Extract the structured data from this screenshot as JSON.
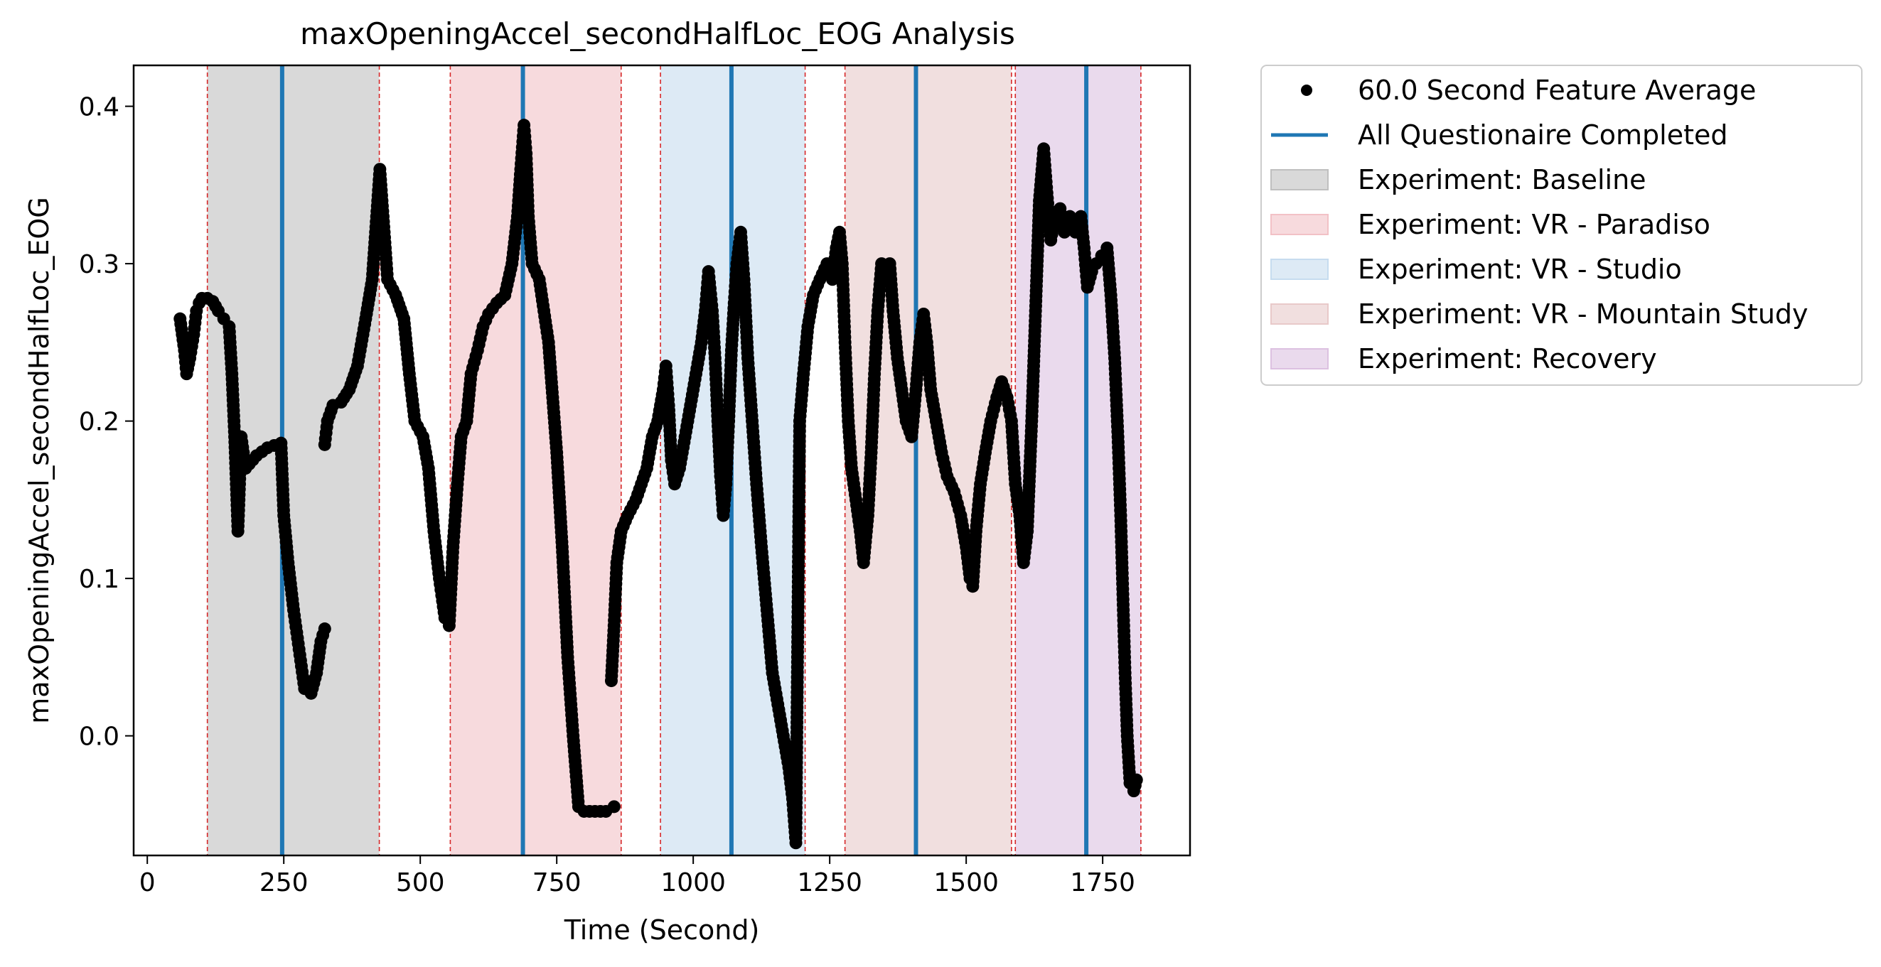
{
  "chart_data": {
    "type": "scatter",
    "title": "maxOpeningAccel_secondHalfLoc_EOG Analysis",
    "xlabel": "Time (Second)",
    "ylabel": "maxOpeningAccel_secondHalfLoc_EOG",
    "xlim": [
      -25,
      1910
    ],
    "ylim": [
      -0.076,
      0.426
    ],
    "x_ticks": [
      0,
      250,
      500,
      750,
      1000,
      1250,
      1500,
      1750
    ],
    "y_ticks": [
      0.0,
      0.1,
      0.2,
      0.3,
      0.4
    ],
    "x_tick_labels": [
      "0",
      "250",
      "500",
      "750",
      "1000",
      "1250",
      "1500",
      "1750"
    ],
    "y_tick_labels": [
      "0.0",
      "0.1",
      "0.2",
      "0.3",
      "0.4"
    ],
    "grid": false,
    "legend_position": "outside-upper-right",
    "legend": [
      {
        "label": "60.0 Second Feature Average",
        "kind": "marker",
        "color": "#000000"
      },
      {
        "label": "All Questionaire Completed",
        "kind": "line",
        "color": "#1f77b4"
      },
      {
        "label": "Experiment: Baseline",
        "kind": "patch",
        "color": "#bfbfbf"
      },
      {
        "label": "Experiment: VR - Paradiso",
        "kind": "patch",
        "color": "#f2c1c6"
      },
      {
        "label": "Experiment: VR - Studio",
        "kind": "patch",
        "color": "#c6dcef"
      },
      {
        "label": "Experiment: VR - Mountain Study",
        "kind": "patch",
        "color": "#e8c9c9"
      },
      {
        "label": "Experiment: Recovery",
        "kind": "patch",
        "color": "#dcc1e1"
      }
    ],
    "regions": [
      {
        "name": "Experiment: Baseline",
        "x0": 110,
        "x1": 425,
        "color": "#bfbfbf",
        "alpha": 0.6
      },
      {
        "name": "Experiment: VR - Paradiso",
        "x0": 555,
        "x1": 868,
        "color": "#f2c1c6",
        "alpha": 0.6
      },
      {
        "name": "Experiment: VR - Studio",
        "x0": 940,
        "x1": 1205,
        "color": "#c6dcef",
        "alpha": 0.6
      },
      {
        "name": "Experiment: VR - Mountain Study",
        "x0": 1278,
        "x1": 1583,
        "color": "#e8c9c9",
        "alpha": 0.6
      },
      {
        "name": "Experiment: Recovery",
        "x0": 1590,
        "x1": 1820,
        "color": "#dcc1e1",
        "alpha": 0.6
      }
    ],
    "region_edges": [
      110,
      425,
      555,
      868,
      940,
      1205,
      1278,
      1583,
      1590,
      1820
    ],
    "questionnaire_lines": [
      247,
      688,
      1070,
      1408,
      1720
    ],
    "series": [
      {
        "name": "60.0 Second Feature Average",
        "color": "#000000",
        "points": [
          [
            60,
            0.265
          ],
          [
            68,
            0.245
          ],
          [
            72,
            0.23
          ],
          [
            78,
            0.24
          ],
          [
            85,
            0.255
          ],
          [
            90,
            0.27
          ],
          [
            95,
            0.275
          ],
          [
            100,
            0.278
          ],
          [
            110,
            0.278
          ],
          [
            120,
            0.276
          ],
          [
            130,
            0.27
          ],
          [
            140,
            0.265
          ],
          [
            150,
            0.26
          ],
          [
            155,
            0.23
          ],
          [
            160,
            0.19
          ],
          [
            163,
            0.16
          ],
          [
            166,
            0.13
          ],
          [
            172,
            0.19
          ],
          [
            180,
            0.17
          ],
          [
            200,
            0.178
          ],
          [
            220,
            0.183
          ],
          [
            245,
            0.186
          ],
          [
            250,
            0.14
          ],
          [
            258,
            0.11
          ],
          [
            268,
            0.08
          ],
          [
            278,
            0.055
          ],
          [
            288,
            0.03
          ],
          [
            300,
            0.027
          ],
          [
            310,
            0.04
          ],
          [
            318,
            0.06
          ],
          [
            325,
            0.068
          ],
          [
            325,
            0.185
          ],
          [
            330,
            0.2
          ],
          [
            340,
            0.21
          ],
          [
            355,
            0.212
          ],
          [
            370,
            0.22
          ],
          [
            385,
            0.235
          ],
          [
            400,
            0.265
          ],
          [
            412,
            0.29
          ],
          [
            420,
            0.33
          ],
          [
            426,
            0.36
          ],
          [
            432,
            0.33
          ],
          [
            440,
            0.29
          ],
          [
            455,
            0.28
          ],
          [
            470,
            0.265
          ],
          [
            480,
            0.23
          ],
          [
            490,
            0.2
          ],
          [
            505,
            0.19
          ],
          [
            515,
            0.17
          ],
          [
            525,
            0.13
          ],
          [
            535,
            0.1
          ],
          [
            545,
            0.075
          ],
          [
            553,
            0.07
          ],
          [
            560,
            0.12
          ],
          [
            568,
            0.16
          ],
          [
            575,
            0.19
          ],
          [
            585,
            0.2
          ],
          [
            593,
            0.23
          ],
          [
            605,
            0.245
          ],
          [
            615,
            0.26
          ],
          [
            625,
            0.268
          ],
          [
            640,
            0.275
          ],
          [
            655,
            0.28
          ],
          [
            668,
            0.3
          ],
          [
            678,
            0.33
          ],
          [
            684,
            0.36
          ],
          [
            690,
            0.388
          ],
          [
            694,
            0.37
          ],
          [
            698,
            0.33
          ],
          [
            705,
            0.3
          ],
          [
            718,
            0.29
          ],
          [
            735,
            0.25
          ],
          [
            750,
            0.18
          ],
          [
            760,
            0.12
          ],
          [
            770,
            0.05
          ],
          [
            780,
            0.0
          ],
          [
            790,
            -0.045
          ],
          [
            800,
            -0.048
          ],
          [
            820,
            -0.048
          ],
          [
            840,
            -0.048
          ],
          [
            855,
            -0.045
          ],
          [
            850,
            0.035
          ],
          [
            855,
            0.07
          ],
          [
            860,
            0.11
          ],
          [
            868,
            0.13
          ],
          [
            880,
            0.14
          ],
          [
            895,
            0.15
          ],
          [
            905,
            0.16
          ],
          [
            915,
            0.17
          ],
          [
            925,
            0.19
          ],
          [
            935,
            0.2
          ],
          [
            945,
            0.22
          ],
          [
            950,
            0.235
          ],
          [
            955,
            0.21
          ],
          [
            960,
            0.175
          ],
          [
            966,
            0.16
          ],
          [
            975,
            0.17
          ],
          [
            985,
            0.19
          ],
          [
            995,
            0.21
          ],
          [
            1005,
            0.23
          ],
          [
            1015,
            0.25
          ],
          [
            1022,
            0.27
          ],
          [
            1028,
            0.295
          ],
          [
            1035,
            0.27
          ],
          [
            1040,
            0.24
          ],
          [
            1045,
            0.2
          ],
          [
            1050,
            0.165
          ],
          [
            1055,
            0.14
          ],
          [
            1060,
            0.16
          ],
          [
            1065,
            0.2
          ],
          [
            1070,
            0.245
          ],
          [
            1075,
            0.275
          ],
          [
            1080,
            0.3
          ],
          [
            1087,
            0.32
          ],
          [
            1093,
            0.29
          ],
          [
            1100,
            0.24
          ],
          [
            1108,
            0.2
          ],
          [
            1116,
            0.16
          ],
          [
            1125,
            0.12
          ],
          [
            1135,
            0.08
          ],
          [
            1145,
            0.04
          ],
          [
            1155,
            0.02
          ],
          [
            1165,
            0.0
          ],
          [
            1175,
            -0.02
          ],
          [
            1182,
            -0.04
          ],
          [
            1188,
            -0.068
          ],
          [
            1195,
            0.2
          ],
          [
            1202,
            0.23
          ],
          [
            1210,
            0.26
          ],
          [
            1220,
            0.28
          ],
          [
            1232,
            0.29
          ],
          [
            1245,
            0.3
          ],
          [
            1255,
            0.29
          ],
          [
            1262,
            0.31
          ],
          [
            1268,
            0.32
          ],
          [
            1273,
            0.3
          ],
          [
            1278,
            0.25
          ],
          [
            1284,
            0.2
          ],
          [
            1290,
            0.17
          ],
          [
            1298,
            0.15
          ],
          [
            1306,
            0.13
          ],
          [
            1312,
            0.11
          ],
          [
            1320,
            0.14
          ],
          [
            1326,
            0.18
          ],
          [
            1332,
            0.23
          ],
          [
            1338,
            0.27
          ],
          [
            1345,
            0.3
          ],
          [
            1352,
            0.29
          ],
          [
            1360,
            0.3
          ],
          [
            1366,
            0.27
          ],
          [
            1374,
            0.24
          ],
          [
            1382,
            0.22
          ],
          [
            1390,
            0.2
          ],
          [
            1400,
            0.19
          ],
          [
            1408,
            0.22
          ],
          [
            1415,
            0.25
          ],
          [
            1422,
            0.268
          ],
          [
            1428,
            0.25
          ],
          [
            1435,
            0.22
          ],
          [
            1445,
            0.2
          ],
          [
            1455,
            0.18
          ],
          [
            1465,
            0.165
          ],
          [
            1478,
            0.155
          ],
          [
            1490,
            0.14
          ],
          [
            1500,
            0.12
          ],
          [
            1507,
            0.1
          ],
          [
            1512,
            0.095
          ],
          [
            1518,
            0.13
          ],
          [
            1526,
            0.16
          ],
          [
            1535,
            0.18
          ],
          [
            1545,
            0.2
          ],
          [
            1556,
            0.215
          ],
          [
            1565,
            0.225
          ],
          [
            1575,
            0.215
          ],
          [
            1583,
            0.2
          ],
          [
            1590,
            0.16
          ],
          [
            1598,
            0.14
          ],
          [
            1605,
            0.11
          ],
          [
            1612,
            0.13
          ],
          [
            1620,
            0.2
          ],
          [
            1627,
            0.27
          ],
          [
            1634,
            0.34
          ],
          [
            1642,
            0.373
          ],
          [
            1648,
            0.345
          ],
          [
            1655,
            0.315
          ],
          [
            1663,
            0.33
          ],
          [
            1672,
            0.335
          ],
          [
            1680,
            0.32
          ],
          [
            1690,
            0.33
          ],
          [
            1700,
            0.32
          ],
          [
            1710,
            0.33
          ],
          [
            1716,
            0.31
          ],
          [
            1722,
            0.285
          ],
          [
            1730,
            0.295
          ],
          [
            1738,
            0.3
          ],
          [
            1748,
            0.305
          ],
          [
            1758,
            0.31
          ],
          [
            1765,
            0.28
          ],
          [
            1772,
            0.24
          ],
          [
            1778,
            0.19
          ],
          [
            1783,
            0.14
          ],
          [
            1787,
            0.09
          ],
          [
            1791,
            0.04
          ],
          [
            1795,
            0.0
          ],
          [
            1800,
            -0.03
          ],
          [
            1807,
            -0.035
          ],
          [
            1812,
            -0.028
          ]
        ]
      }
    ]
  }
}
